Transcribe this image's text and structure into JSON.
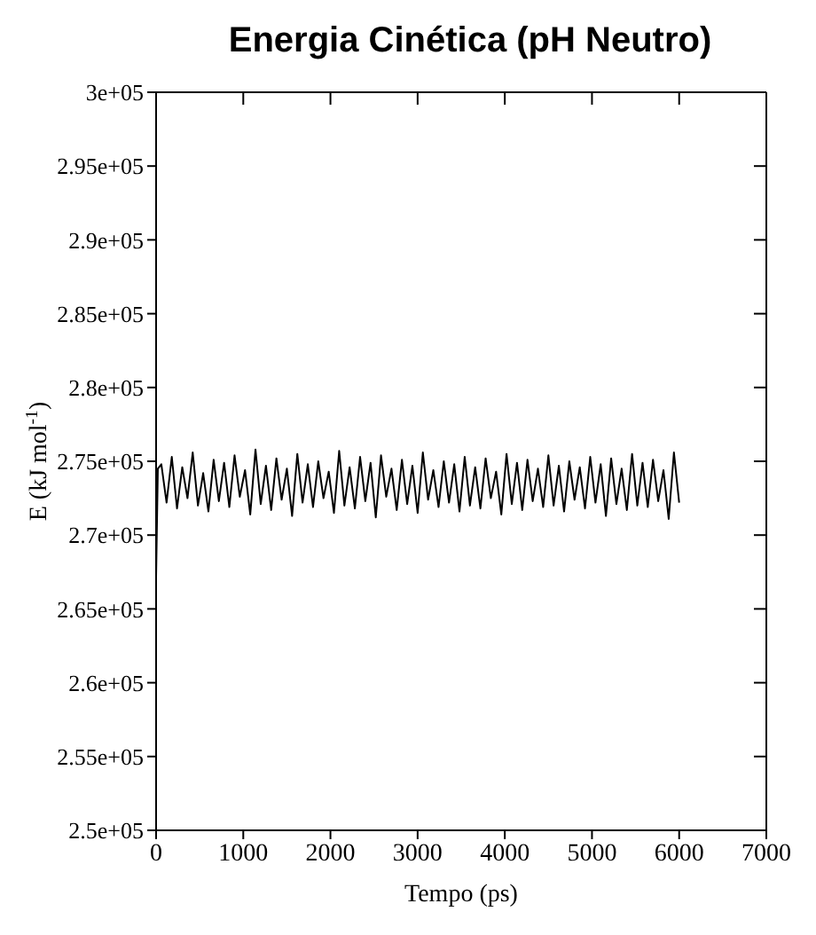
{
  "chart_data": {
    "type": "line",
    "title": "Energia Cinética (pH Neutro)",
    "xlabel": "Tempo (ps)",
    "ylabel": "E (kJ mol$^{-1}$)",
    "x": [
      0,
      20,
      60,
      120,
      180,
      240,
      300,
      360,
      420,
      480,
      540,
      600,
      660,
      720,
      780,
      840,
      900,
      960,
      1020,
      1080,
      1140,
      1200,
      1260,
      1320,
      1380,
      1440,
      1500,
      1560,
      1620,
      1680,
      1740,
      1800,
      1860,
      1920,
      1980,
      2040,
      2100,
      2160,
      2220,
      2280,
      2340,
      2400,
      2460,
      2520,
      2580,
      2640,
      2700,
      2760,
      2820,
      2880,
      2940,
      3000,
      3060,
      3120,
      3180,
      3240,
      3300,
      3360,
      3420,
      3480,
      3540,
      3600,
      3660,
      3720,
      3780,
      3840,
      3900,
      3960,
      4020,
      4080,
      4140,
      4200,
      4260,
      4320,
      4380,
      4440,
      4500,
      4560,
      4620,
      4680,
      4740,
      4800,
      4860,
      4920,
      4980,
      5040,
      5100,
      5160,
      5220,
      5280,
      5340,
      5400,
      5460,
      5520,
      5580,
      5640,
      5700,
      5760,
      5820,
      5880,
      5940,
      6000
    ],
    "series": [
      {
        "color": "#000000",
        "values": [
          267200,
          274500,
          274800,
          272200,
          275300,
          271800,
          274600,
          272500,
          275600,
          272000,
          274200,
          271600,
          275100,
          272300,
          274900,
          271900,
          275400,
          272600,
          274400,
          271400,
          275800,
          272100,
          274700,
          271700,
          275200,
          272400,
          274500,
          271300,
          275500,
          272200,
          274800,
          271900,
          275000,
          272500,
          274300,
          271500,
          275700,
          272000,
          274600,
          271800,
          275300,
          272300,
          274900,
          271200,
          275400,
          272600,
          274500,
          271700,
          275100,
          272100,
          274700,
          271500,
          275600,
          272400,
          274400,
          271900,
          275000,
          272200,
          274800,
          271600,
          275300,
          272000,
          274600,
          271800,
          275200,
          272500,
          274300,
          271400,
          275500,
          272100,
          274900,
          271700,
          275100,
          272300,
          274500,
          271900,
          275400,
          272000,
          274700,
          271600,
          275000,
          272400,
          274600,
          271800,
          275300,
          272200,
          274800,
          271300,
          275200,
          272100,
          274500,
          271700,
          275500,
          272000,
          274900,
          271900,
          275100,
          272300,
          274400,
          271100,
          275600,
          272200
        ]
      }
    ],
    "xlim": [
      0,
      7000
    ],
    "xticks": [
      0,
      1000,
      2000,
      3000,
      4000,
      5000,
      6000,
      7000
    ],
    "ylim": [
      250000,
      300000
    ],
    "yticks": [
      {
        "value": 250000,
        "label": "2.5e+05"
      },
      {
        "value": 255000,
        "label": "2.55e+05"
      },
      {
        "value": 260000,
        "label": "2.6e+05"
      },
      {
        "value": 265000,
        "label": "2.65e+05"
      },
      {
        "value": 270000,
        "label": "2.7e+05"
      },
      {
        "value": 275000,
        "label": "2.75e+05"
      },
      {
        "value": 280000,
        "label": "2.8e+05"
      },
      {
        "value": 285000,
        "label": "2.85e+05"
      },
      {
        "value": 290000,
        "label": "2.9e+05"
      },
      {
        "value": 295000,
        "label": "2.95e+05"
      },
      {
        "value": 300000,
        "label": "3e+05"
      }
    ],
    "grid": false,
    "legend": false,
    "marker": "none",
    "line_style": "solid"
  }
}
